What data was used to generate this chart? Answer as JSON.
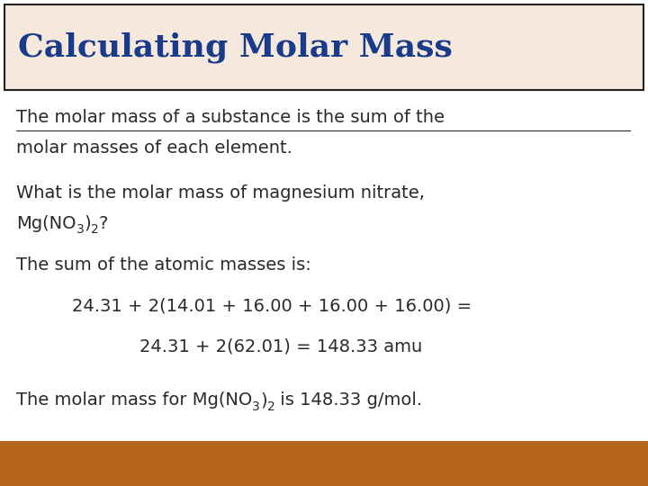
{
  "title": "Calculating Molar Mass",
  "title_color": "#1a3a8a",
  "title_bg_color": "#f5e8dc",
  "title_border_color": "#222222",
  "bg_color": "#ffffff",
  "bottom_bar_color": "#b5651d",
  "body_text_color": "#2a2a2a",
  "line1": "The molar mass of a substance is the sum of the",
  "line2": "molar masses of each element.",
  "line3": "What is the molar mass of magnesium nitrate,",
  "line4_a": "Mg(NO",
  "line4_sub1": "3",
  "line4_b": ")",
  "line4_sub2": "2",
  "line4_c": "?",
  "line5": "The sum of the atomic masses is:",
  "line6": "24.31 + 2(14.01 + 16.00 + 16.00 + 16.00) =",
  "line7": "24.31 + 2(62.01) = 148.33 amu",
  "line8a": "The molar mass for Mg(NO",
  "line8_sub1": "3",
  "line8b": ")",
  "line8_sub2": "2",
  "line8c": " is 148.33 g/mol.",
  "title_fontsize": 26,
  "body_fontsize": 14,
  "sub_fontsize": 10
}
